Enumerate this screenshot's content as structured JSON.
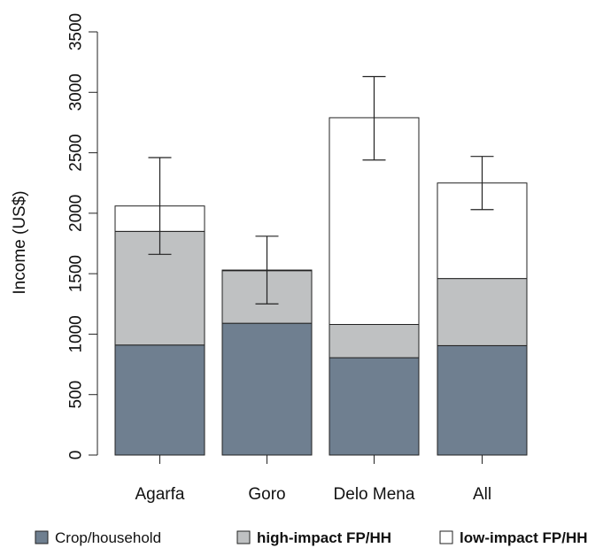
{
  "chart_data": {
    "type": "bar",
    "stacked": true,
    "categories": [
      "Agarfa",
      "Goro",
      "Delo Mena",
      "All"
    ],
    "series": [
      {
        "name": "Crop/household",
        "values": [
          910,
          1090,
          805,
          905
        ],
        "color": "#6f7f90"
      },
      {
        "name": "high-impact FP/HH",
        "values": [
          940,
          435,
          275,
          555
        ],
        "color": "#bfc1c2"
      },
      {
        "name": "low-impact FP/HH",
        "values": [
          210,
          5,
          1710,
          790
        ],
        "color": "#ffffff"
      }
    ],
    "totals": [
      2060,
      1530,
      2790,
      2250
    ],
    "error_bars": [
      {
        "low": 1660,
        "high": 2460
      },
      {
        "low": 1250,
        "high": 1810
      },
      {
        "low": 2440,
        "high": 3130
      },
      {
        "low": 2030,
        "high": 2470
      }
    ],
    "title": "",
    "xlabel": "",
    "ylabel": "Income (US$)",
    "ylim": [
      0,
      3500
    ],
    "yticks": [
      0,
      500,
      1000,
      1500,
      2000,
      2500,
      3000,
      3500
    ],
    "grid": false,
    "legend_position": "bottom"
  }
}
